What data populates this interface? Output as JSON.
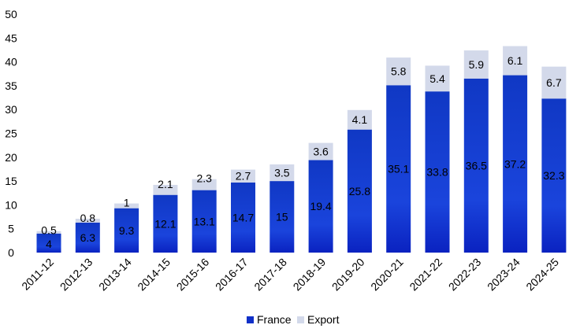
{
  "chart_data": {
    "type": "bar",
    "stacked": true,
    "categories": [
      "2011-12",
      "2012-13",
      "2013-14",
      "2014-15",
      "2015-16",
      "2016-17",
      "2017-18",
      "2018-19",
      "2019-20",
      "2020-21",
      "2021-22",
      "2022-23",
      "2023-24",
      "2024-25"
    ],
    "series": [
      {
        "name": "France",
        "color": "#1030c8",
        "values": [
          4,
          6.3,
          9.3,
          12.1,
          13.1,
          14.7,
          15,
          19.4,
          25.8,
          35.1,
          33.8,
          36.5,
          37.2,
          32.3
        ]
      },
      {
        "name": "Export",
        "color": "#d3d9ea",
        "values": [
          0.5,
          0.8,
          1,
          2.1,
          2.3,
          2.7,
          3.5,
          3.6,
          4.1,
          5.8,
          5.4,
          5.9,
          6.1,
          6.7
        ]
      }
    ],
    "ylim": [
      0,
      50
    ],
    "yticks": [
      "0",
      "5",
      "10",
      "15",
      "20",
      "25",
      "30",
      "35",
      "40",
      "45",
      "50"
    ],
    "grid": false,
    "legend": "bottom",
    "title": "",
    "xlabel": "",
    "ylabel": ""
  }
}
